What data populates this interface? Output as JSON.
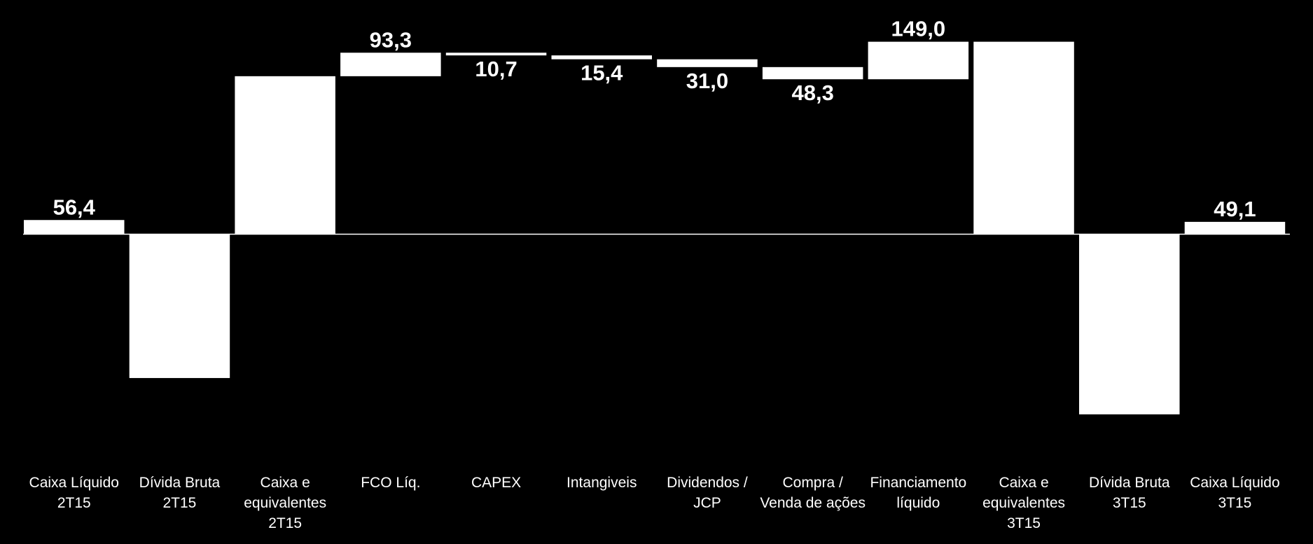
{
  "chart_data": {
    "type": "waterfall",
    "categories": [
      "Caixa Líquido\n2T15",
      "Dívida Bruta\n2T15",
      "Caixa e\nequivalentes\n2T15",
      "FCO Líq.",
      "CAPEX",
      "Intangiveis",
      "Dividendos /\nJCP",
      "Compra /\nVenda de ações",
      "Financiamento\nlíquido",
      "Caixa e\nequivalentes\n3T15",
      "Dívida Bruta\n3T15",
      "Caixa Líquido\n3T15"
    ],
    "values": [
      56.4,
      -571.0,
      627.4,
      93.3,
      -10.7,
      -15.4,
      -31.0,
      -48.3,
      149.0,
      764.3,
      -715.2,
      49.1
    ],
    "value_labels": [
      "56,4",
      null,
      null,
      "93,3",
      "10,7",
      "15,4",
      "31,0",
      "48,3",
      "149,0",
      null,
      null,
      "49,1"
    ],
    "measure": [
      "absolute",
      "absolute",
      "absolute",
      "relative",
      "relative",
      "relative",
      "relative",
      "relative",
      "relative",
      "absolute",
      "absolute",
      "absolute"
    ],
    "color": "#ffffff",
    "ylim": [
      -1230,
      930
    ]
  }
}
